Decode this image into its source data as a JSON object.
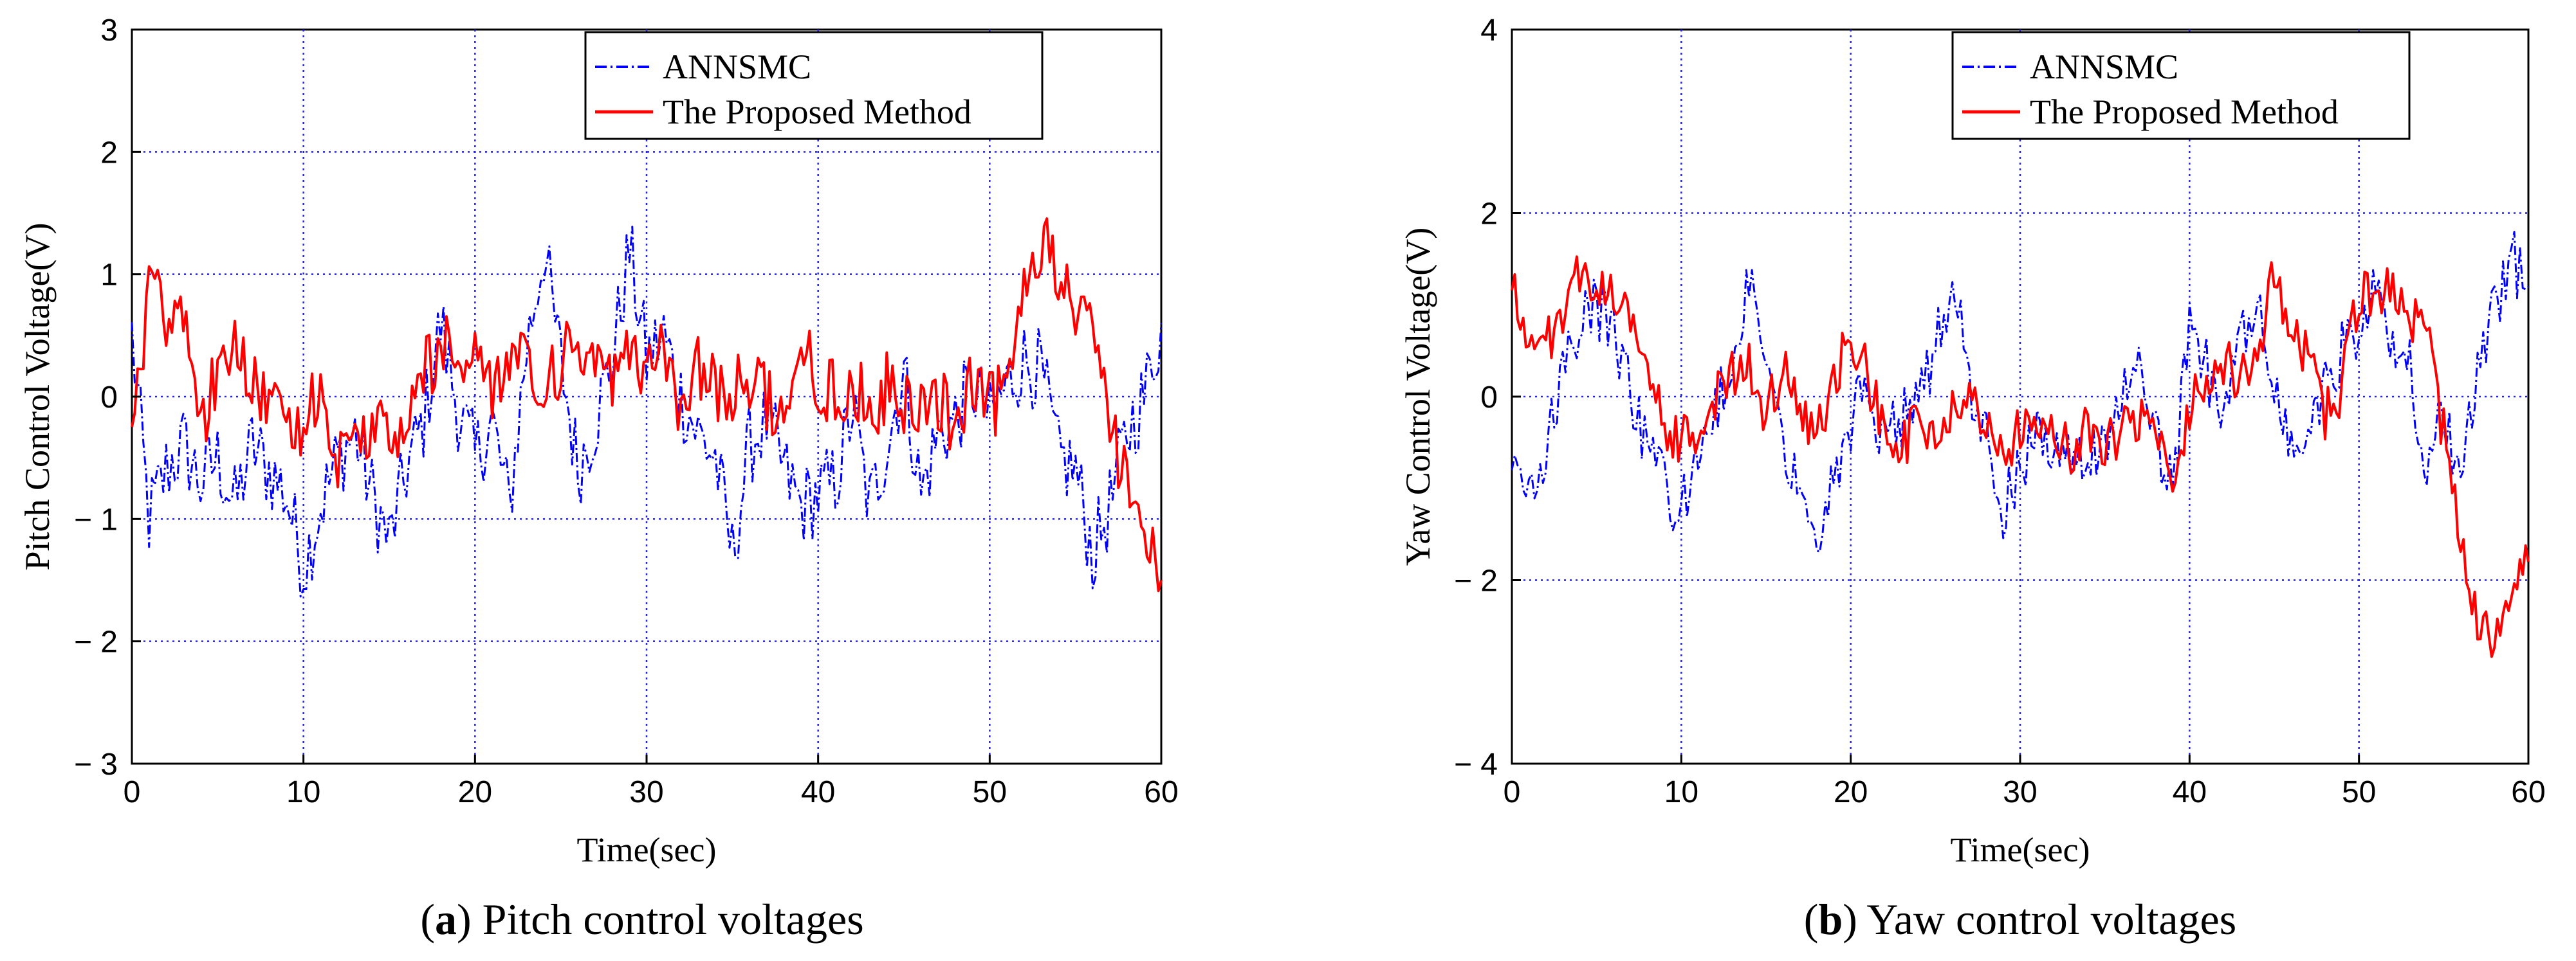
{
  "figure": {
    "captions": [
      {
        "letter": "a",
        "text": ") Pitch control voltages"
      },
      {
        "letter": "b",
        "text": ") Yaw control voltages"
      }
    ]
  },
  "chart_data": [
    {
      "id": "pitch",
      "type": "line",
      "title": "",
      "xlabel": "Time(sec)",
      "ylabel": "Pitch Control Voltage(V)",
      "xlim": [
        0,
        60
      ],
      "ylim": [
        -3,
        3
      ],
      "xticks": [
        0,
        10,
        20,
        30,
        40,
        50,
        60
      ],
      "yticks": [
        3,
        2,
        1,
        0,
        -1,
        -2,
        -3
      ],
      "xtick_labels": [
        "0",
        "10",
        "20",
        "30",
        "40",
        "50",
        "60"
      ],
      "ytick_labels": [
        "3",
        "2",
        "1",
        "0",
        "− 1",
        "− 2",
        "− 3"
      ],
      "grid": true,
      "legend_position": "top-center",
      "series": [
        {
          "name": "ANNSMC",
          "color": "#0000ff",
          "style": "dashdot",
          "x": [
            0,
            1,
            2,
            3,
            4,
            5,
            6,
            7,
            8,
            9,
            10,
            11,
            12,
            13,
            14,
            15,
            16,
            17,
            18,
            19,
            20,
            21,
            22,
            23,
            24,
            25,
            26,
            27,
            28,
            29,
            30,
            31,
            32,
            33,
            34,
            35,
            36,
            37,
            38,
            39,
            40,
            41,
            42,
            43,
            44,
            45,
            46,
            47,
            48,
            49,
            50,
            51,
            52,
            53,
            54,
            55,
            56,
            57,
            58,
            59,
            60
          ],
          "y": [
            0.5,
            -1.0,
            -0.6,
            -0.4,
            -0.7,
            -0.5,
            -0.9,
            -0.4,
            -0.6,
            -0.8,
            -1.4,
            -0.9,
            -0.5,
            -0.3,
            -0.8,
            -1.2,
            -0.6,
            -0.2,
            0.6,
            -0.1,
            -0.5,
            -0.2,
            -0.9,
            0.4,
            1.2,
            0.3,
            -0.6,
            -0.2,
            0.3,
            1.2,
            0.3,
            0.5,
            0.0,
            -0.3,
            -0.5,
            -1.3,
            -0.4,
            -0.2,
            -0.6,
            -0.9,
            -0.8,
            -0.7,
            -0.1,
            -0.9,
            -0.4,
            0.2,
            -0.8,
            -0.3,
            -0.2,
            0.1,
            -0.2,
            0.1,
            0.3,
            0.2,
            -0.5,
            -0.6,
            -1.3,
            -0.9,
            -0.3,
            0.0,
            0.6
          ]
        },
        {
          "name": "The Proposed Method",
          "color": "#ff0000",
          "style": "solid",
          "x": [
            0,
            1,
            2,
            3,
            4,
            5,
            6,
            7,
            8,
            9,
            10,
            11,
            12,
            13,
            14,
            15,
            16,
            17,
            18,
            19,
            20,
            21,
            22,
            23,
            24,
            25,
            26,
            27,
            28,
            29,
            30,
            31,
            32,
            33,
            34,
            35,
            36,
            37,
            38,
            39,
            40,
            41,
            42,
            43,
            44,
            45,
            46,
            47,
            48,
            49,
            50,
            51,
            52,
            53,
            54,
            55,
            56,
            57,
            58,
            59,
            60
          ],
          "y": [
            -0.3,
            0.9,
            0.7,
            0.8,
            -0.2,
            0.2,
            0.5,
            0.2,
            0.0,
            -0.3,
            -0.2,
            0.1,
            -0.5,
            -0.3,
            -0.4,
            -0.2,
            -0.3,
            0.2,
            0.4,
            0.3,
            0.4,
            0.1,
            0.3,
            0.2,
            0.1,
            0.3,
            0.4,
            0.2,
            0.1,
            0.3,
            0.2,
            0.4,
            -0.1,
            0.3,
            0.0,
            0.1,
            0.2,
            0.0,
            -0.1,
            0.4,
            0.1,
            0.0,
            0.2,
            -0.2,
            0.1,
            0.0,
            -0.1,
            0.0,
            -0.2,
            0.1,
            -0.1,
            0.1,
            1.0,
            1.3,
            0.9,
            0.7,
            0.5,
            -0.2,
            -0.7,
            -1.2,
            -1.5
          ]
        }
      ]
    },
    {
      "id": "yaw",
      "type": "line",
      "title": "",
      "xlabel": "Time(sec)",
      "ylabel": "Yaw Control Voltage(V)",
      "xlim": [
        0,
        60
      ],
      "ylim": [
        -4,
        4
      ],
      "xticks": [
        0,
        10,
        20,
        30,
        40,
        50,
        60
      ],
      "yticks": [
        4,
        2,
        0,
        -2,
        -4
      ],
      "xtick_labels": [
        "0",
        "10",
        "20",
        "30",
        "40",
        "50",
        "60"
      ],
      "ytick_labels": [
        "4",
        "2",
        "0",
        "− 2",
        "− 4"
      ],
      "grid": true,
      "legend_position": "top-right",
      "series": [
        {
          "name": "ANNSMC",
          "color": "#0000ff",
          "style": "dashdot",
          "x": [
            0,
            1,
            2,
            3,
            4,
            5,
            6,
            7,
            8,
            9,
            10,
            11,
            12,
            13,
            14,
            15,
            16,
            17,
            18,
            19,
            20,
            21,
            22,
            23,
            24,
            25,
            26,
            27,
            28,
            29,
            30,
            31,
            32,
            33,
            34,
            35,
            36,
            37,
            38,
            39,
            40,
            41,
            42,
            43,
            44,
            45,
            46,
            47,
            48,
            49,
            50,
            51,
            52,
            53,
            54,
            55,
            56,
            57,
            58,
            59,
            60
          ],
          "y": [
            -0.8,
            -1.1,
            -0.5,
            0.2,
            0.8,
            1.0,
            0.7,
            0.1,
            -0.6,
            -1.0,
            -1.3,
            -0.7,
            -0.2,
            0.4,
            1.2,
            0.5,
            -0.4,
            -1.0,
            -1.5,
            -0.8,
            -0.3,
            0.3,
            -0.6,
            -0.2,
            0.1,
            0.5,
            1.2,
            0.2,
            -0.5,
            -1.2,
            -0.8,
            -0.3,
            -0.6,
            -0.8,
            -0.7,
            -0.4,
            0.0,
            0.2,
            -0.5,
            -1.0,
            0.8,
            0.3,
            -0.2,
            0.6,
            0.9,
            0.2,
            -0.6,
            -0.4,
            0.1,
            0.5,
            0.8,
            1.1,
            0.5,
            0.3,
            -0.7,
            -0.2,
            -1.0,
            0.3,
            0.9,
            1.5,
            1.2
          ]
        },
        {
          "name": "The Proposed Method",
          "color": "#ff0000",
          "style": "solid",
          "x": [
            0,
            1,
            2,
            3,
            4,
            5,
            6,
            7,
            8,
            9,
            10,
            11,
            12,
            13,
            14,
            15,
            16,
            17,
            18,
            19,
            20,
            21,
            22,
            23,
            24,
            25,
            26,
            27,
            28,
            29,
            30,
            31,
            32,
            33,
            34,
            35,
            36,
            37,
            38,
            39,
            40,
            41,
            42,
            43,
            44,
            45,
            46,
            47,
            48,
            49,
            50,
            51,
            52,
            53,
            54,
            55,
            56,
            57,
            58,
            59,
            60
          ],
          "y": [
            1.2,
            0.4,
            0.6,
            0.9,
            1.3,
            1.2,
            1.0,
            0.9,
            0.2,
            -0.3,
            -0.5,
            -0.4,
            0.0,
            0.2,
            0.4,
            -0.2,
            0.3,
            -0.1,
            -0.4,
            0.2,
            0.7,
            0.2,
            -0.4,
            -0.6,
            -0.2,
            -0.4,
            -0.2,
            0.0,
            -0.3,
            -0.5,
            -0.4,
            -0.2,
            -0.4,
            -0.6,
            -0.3,
            -0.5,
            -0.4,
            -0.2,
            -0.5,
            -0.9,
            -0.2,
            0.3,
            0.4,
            0.1,
            0.5,
            1.3,
            0.6,
            0.4,
            -0.2,
            0.1,
            1.1,
            1.0,
            1.3,
            0.8,
            0.7,
            -0.4,
            -1.5,
            -2.4,
            -2.8,
            -2.2,
            -1.8
          ]
        }
      ]
    }
  ]
}
